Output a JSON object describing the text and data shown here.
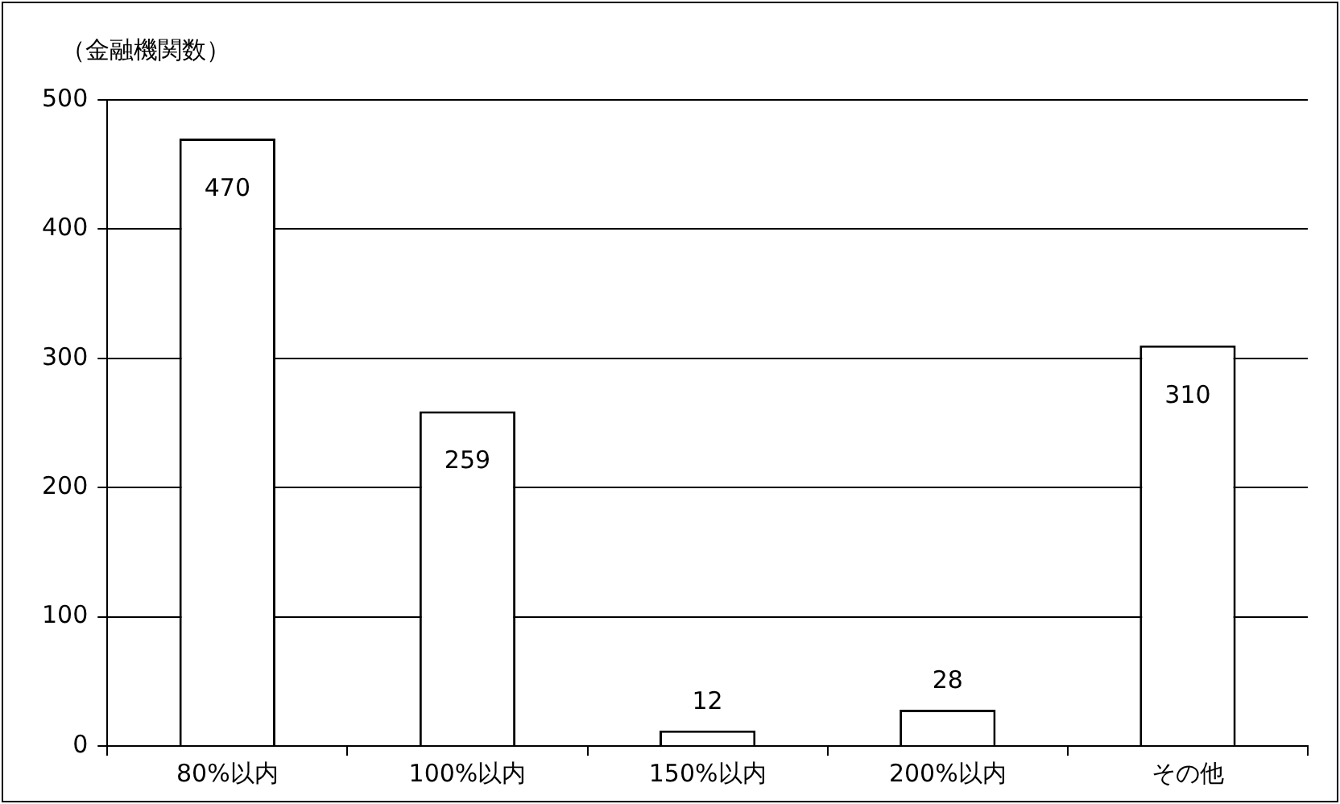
{
  "chart_data": {
    "type": "bar",
    "ylabel": "（金融機関数）",
    "categories": [
      "80%以内",
      "100%以内",
      "150%以内",
      "200%以内",
      "その他"
    ],
    "values": [
      470,
      259,
      12,
      28,
      310
    ],
    "color": "#ffffff",
    "ylim": [
      0,
      500
    ],
    "yticks": [
      0,
      100,
      200,
      300,
      400,
      500
    ],
    "grid": "y",
    "data_labels": true,
    "legend": false
  }
}
